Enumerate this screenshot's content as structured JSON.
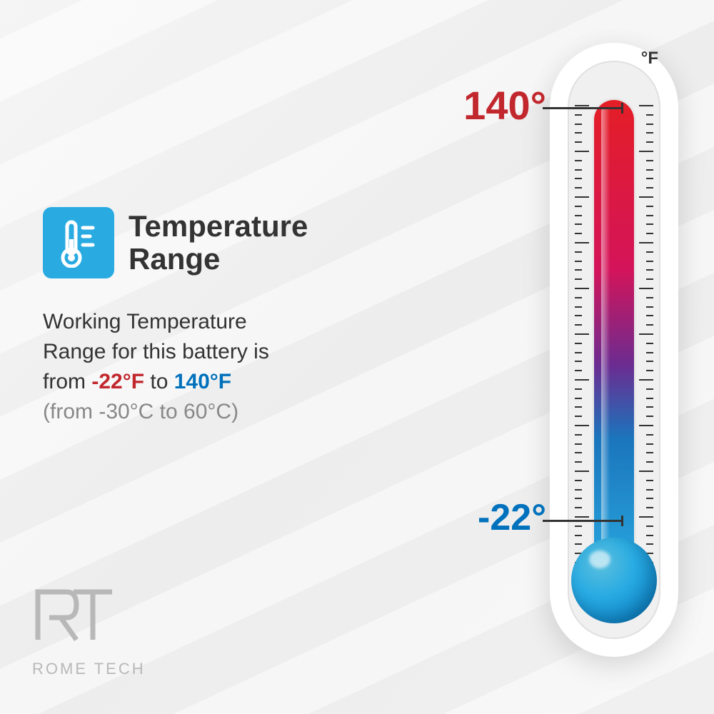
{
  "title": "Temperature Range",
  "description": {
    "line1": "Working Temperature",
    "line2": "Range for this battery is",
    "line3_prefix": "from ",
    "low_temp": "-22°F",
    "line3_mid": " to ",
    "high_temp": "140°F",
    "celsius": "(from -30°C to 60°C)"
  },
  "thermometer": {
    "unit": "°F",
    "high_value": "140°",
    "low_value": "-22°",
    "high_color": "#c1272d",
    "low_color": "#0071bc",
    "gradient_top": "#e41e26",
    "gradient_bottom": "#29abe2",
    "body_bg": "#ffffff",
    "tick_count": 50,
    "tick_major_every": 5
  },
  "icon": {
    "bg_color": "#29abe2",
    "fg_color": "#ffffff"
  },
  "logo": {
    "mark": "RT",
    "text": "ROME TECH",
    "color": "#b8b8b8"
  },
  "colors": {
    "bg": "#f0f0f0",
    "text": "#333333",
    "muted": "#888888"
  }
}
